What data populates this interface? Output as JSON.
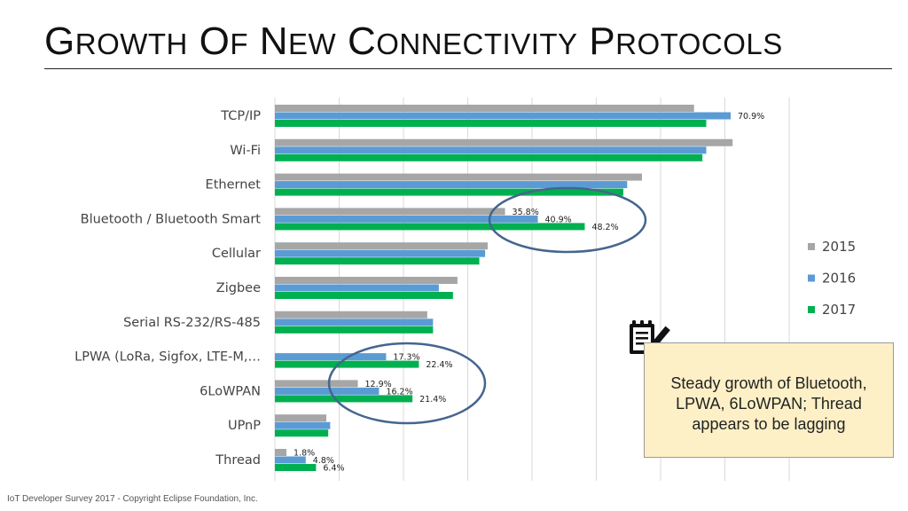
{
  "title": "Growth of New Connectivity Protocols",
  "footer": "IoT Developer Survey 2017 - Copyright Eclipse Foundation, Inc.",
  "note": "Steady growth of Bluetooth, LPWA, 6LoWPAN; Thread appears to be lagging",
  "icon": "notepad-pen-icon",
  "colors": {
    "2015": "#a6a6a6",
    "2016": "#5b9bd5",
    "2017": "#00b050",
    "ellipse": "#44668e",
    "note_bg": "#fdf0c6"
  },
  "chart_data": {
    "type": "bar",
    "orientation": "horizontal",
    "categories": [
      "TCP/IP",
      "Wi-Fi",
      "Ethernet",
      "Bluetooth / Bluetooth Smart",
      "Cellular",
      "Zigbee",
      "Serial RS-232/RS-485",
      "LPWA (LoRa, Sigfox, LTE-M,…",
      "6LoWPAN",
      "UPnP",
      "Thread"
    ],
    "series": [
      {
        "name": "2015",
        "values": [
          65.2,
          71.2,
          57.1,
          35.8,
          33.1,
          28.4,
          23.7,
          0,
          12.9,
          8.0,
          1.8
        ],
        "labels": [
          "",
          "",
          "",
          "35.8%",
          "",
          "",
          "",
          "",
          "12.9%",
          "",
          "1.8%"
        ]
      },
      {
        "name": "2016",
        "values": [
          70.9,
          67.1,
          54.8,
          40.9,
          32.7,
          25.5,
          24.6,
          17.3,
          16.2,
          8.6,
          4.8
        ],
        "labels": [
          "70.9%",
          "",
          "",
          "40.9%",
          "",
          "",
          "",
          "17.3%",
          "16.2%",
          "",
          "4.8%"
        ]
      },
      {
        "name": "2017",
        "values": [
          67.1,
          66.5,
          54.2,
          48.2,
          31.8,
          27.7,
          24.6,
          22.4,
          21.4,
          8.3,
          6.4
        ],
        "labels": [
          "",
          "",
          "",
          "48.2%",
          "",
          "",
          "",
          "22.4%",
          "21.4%",
          "",
          "6.4%"
        ]
      }
    ],
    "xlim": [
      0,
      80
    ],
    "grid": true,
    "legend": "right"
  }
}
